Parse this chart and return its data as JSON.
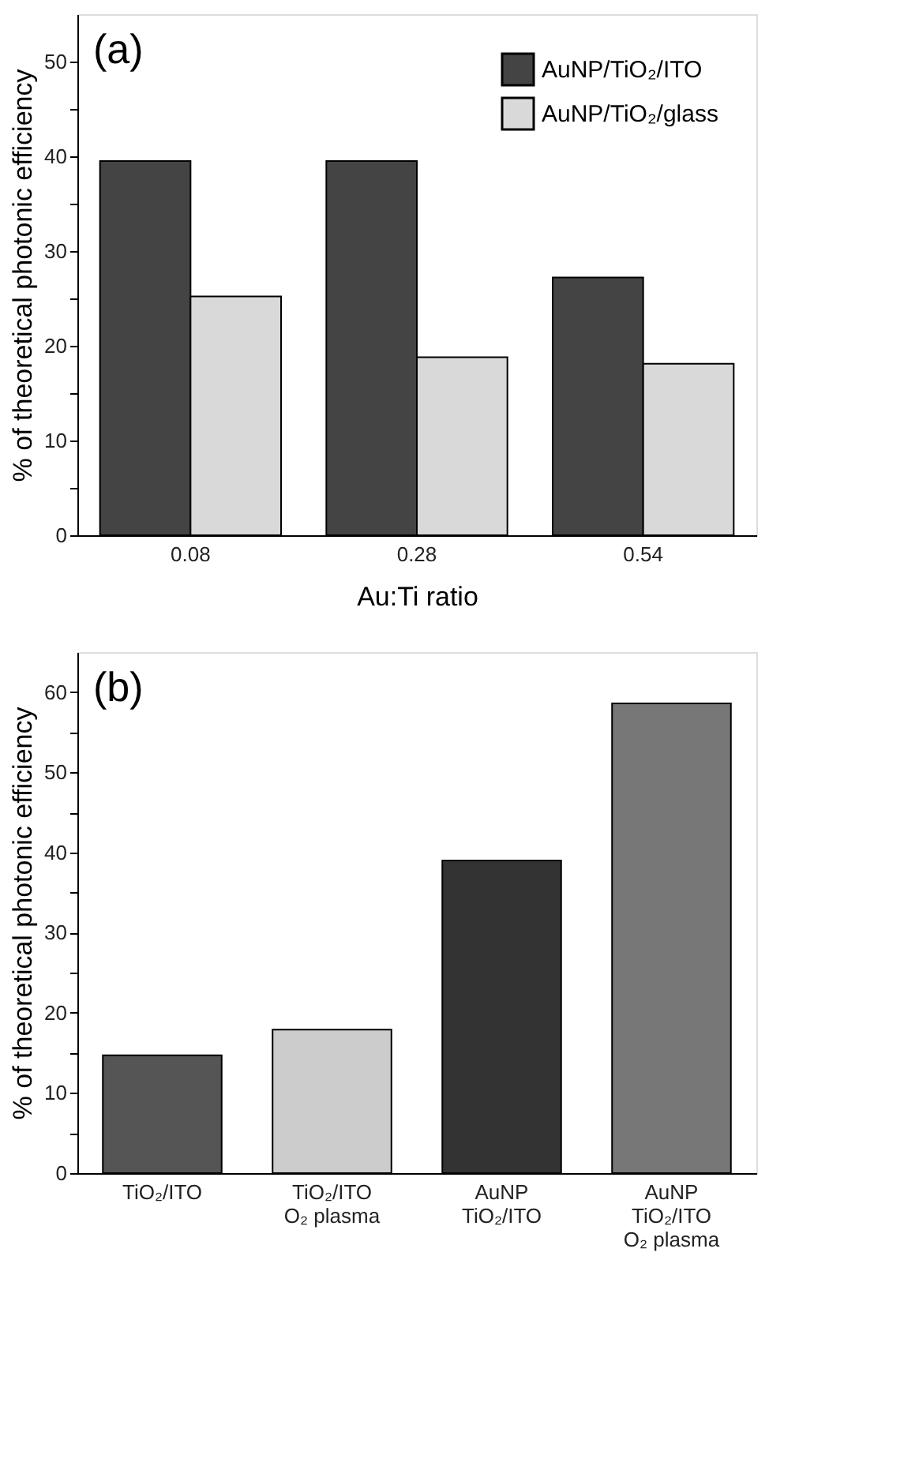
{
  "chart_data": [
    {
      "type": "bar",
      "categories": [
        "0.08",
        "0.28",
        "0.54"
      ],
      "xlabel": "Au:Ti ratio",
      "ylabel": "% of theoretical photonic efficiency",
      "series": [
        {
          "name": "AuNP/TiO₂/ITO",
          "color": "#444444",
          "values": [
            39.5,
            39.5,
            27.2
          ]
        },
        {
          "name": "AuNP/TiO₂/glass",
          "color": "#d9d9d9",
          "values": [
            25.2,
            18.8,
            18.1
          ]
        }
      ],
      "ylim": [
        0,
        55
      ],
      "yticks": [
        0,
        {
          "value": 5,
          "label": null
        },
        10,
        {
          "value": 15,
          "label": null
        },
        20,
        {
          "value": 25,
          "label": null
        },
        30,
        {
          "value": 35,
          "label": null
        },
        40,
        {
          "value": 45,
          "label": null
        },
        50
      ],
      "legend": "top right",
      "grid": false,
      "annotations": [
        "(a)"
      ]
    },
    {
      "type": "bar",
      "categories": [
        "TiO₂/ITO",
        "TiO₂/ITO\nO₂ plasma",
        "AuNP\nTiO₂/ITO",
        "AuNP\nTiO₂/ITO\nO₂ plasma"
      ],
      "ylabel": "% of theoretical photonic efficiency",
      "values": [
        14.7,
        17.9,
        39.0,
        58.6
      ],
      "colors": [
        "#555555",
        "#cccccc",
        "#333333",
        "#777777"
      ],
      "ylim": [
        0,
        65
      ],
      "yticks": [
        0,
        {
          "value": 5,
          "label": null
        },
        10,
        {
          "value": 15,
          "label": null
        },
        20,
        {
          "value": 25,
          "label": null
        },
        30,
        {
          "value": 35,
          "label": null
        },
        40,
        {
          "value": 45,
          "label": null
        },
        50,
        {
          "value": 55,
          "label": null
        },
        60
      ],
      "grid": false,
      "annotations": [
        "(b)"
      ]
    }
  ]
}
